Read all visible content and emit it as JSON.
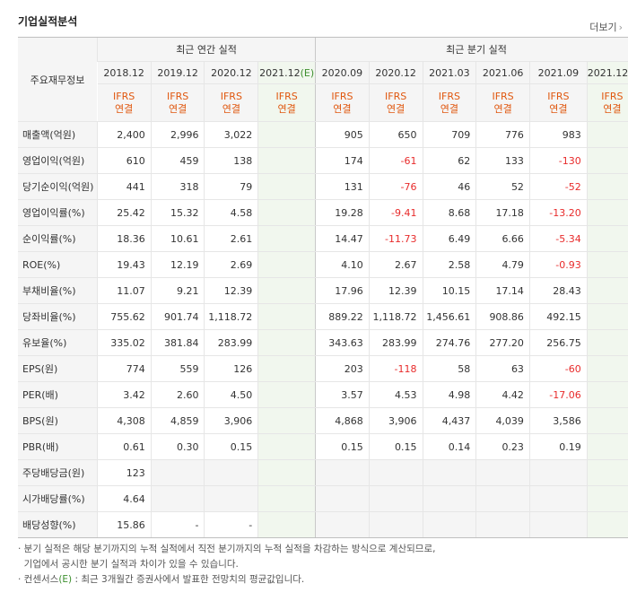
{
  "header": {
    "title": "기업실적분석",
    "more_label": "더보기"
  },
  "table": {
    "category_header": "주요재무정보",
    "annual_group": "최근 연간 실적",
    "quarter_group": "최근 분기 실적",
    "annual_periods": [
      "2018.12",
      "2019.12",
      "2020.12",
      "2021.12"
    ],
    "quarter_periods": [
      "2020.09",
      "2020.12",
      "2021.03",
      "2021.06",
      "2021.09",
      "2021.12"
    ],
    "estimate_marker": "(E)",
    "basis_top": "IFRS",
    "basis_bottom": "연결",
    "rows": [
      {
        "label": "매출액(억원)",
        "annual": [
          "2,400",
          "2,996",
          "3,022",
          ""
        ],
        "quarter": [
          "905",
          "650",
          "709",
          "776",
          "983",
          ""
        ]
      },
      {
        "label": "영업이익(억원)",
        "annual": [
          "610",
          "459",
          "138",
          ""
        ],
        "quarter": [
          "174",
          "-61",
          "62",
          "133",
          "-130",
          ""
        ]
      },
      {
        "label": "당기순이익(억원)",
        "annual": [
          "441",
          "318",
          "79",
          ""
        ],
        "quarter": [
          "131",
          "-76",
          "46",
          "52",
          "-52",
          ""
        ]
      },
      {
        "label": "영업이익률(%)",
        "annual": [
          "25.42",
          "15.32",
          "4.58",
          ""
        ],
        "quarter": [
          "19.28",
          "-9.41",
          "8.68",
          "17.18",
          "-13.20",
          ""
        ]
      },
      {
        "label": "순이익률(%)",
        "annual": [
          "18.36",
          "10.61",
          "2.61",
          ""
        ],
        "quarter": [
          "14.47",
          "-11.73",
          "6.49",
          "6.66",
          "-5.34",
          ""
        ]
      },
      {
        "label": "ROE(%)",
        "annual": [
          "19.43",
          "12.19",
          "2.69",
          ""
        ],
        "quarter": [
          "4.10",
          "2.67",
          "2.58",
          "4.79",
          "-0.93",
          ""
        ]
      },
      {
        "label": "부채비율(%)",
        "annual": [
          "11.07",
          "9.21",
          "12.39",
          ""
        ],
        "quarter": [
          "17.96",
          "12.39",
          "10.15",
          "17.14",
          "28.43",
          ""
        ]
      },
      {
        "label": "당좌비율(%)",
        "annual": [
          "755.62",
          "901.74",
          "1,118.72",
          ""
        ],
        "quarter": [
          "889.22",
          "1,118.72",
          "1,456.61",
          "908.86",
          "492.15",
          ""
        ]
      },
      {
        "label": "유보율(%)",
        "annual": [
          "335.02",
          "381.84",
          "283.99",
          ""
        ],
        "quarter": [
          "343.63",
          "283.99",
          "274.76",
          "277.20",
          "256.75",
          ""
        ]
      },
      {
        "label": "EPS(원)",
        "annual": [
          "774",
          "559",
          "126",
          ""
        ],
        "quarter": [
          "203",
          "-118",
          "58",
          "63",
          "-60",
          ""
        ]
      },
      {
        "label": "PER(배)",
        "annual": [
          "3.42",
          "2.60",
          "4.50",
          ""
        ],
        "quarter": [
          "3.57",
          "4.53",
          "4.98",
          "4.42",
          "-17.06",
          ""
        ]
      },
      {
        "label": "BPS(원)",
        "annual": [
          "4,308",
          "4,859",
          "3,906",
          ""
        ],
        "quarter": [
          "4,868",
          "3,906",
          "4,437",
          "4,039",
          "3,586",
          ""
        ]
      },
      {
        "label": "PBR(배)",
        "annual": [
          "0.61",
          "0.30",
          "0.15",
          ""
        ],
        "quarter": [
          "0.15",
          "0.15",
          "0.14",
          "0.23",
          "0.19",
          ""
        ]
      },
      {
        "label": "주당배당금(원)",
        "annual": [
          "123",
          "",
          "",
          ""
        ],
        "quarter": null
      },
      {
        "label": "시가배당률(%)",
        "annual": [
          "4.64",
          "",
          "",
          ""
        ],
        "quarter": null
      },
      {
        "label": "배당성향(%)",
        "annual": [
          "15.86",
          "-",
          "-",
          ""
        ],
        "quarter": null
      }
    ]
  },
  "notes": {
    "line1": "· 분기 실적은 해당 분기까지의 누적 실적에서 직전 분기까지의 누적 실적을 차감하는 방식으로 계산되므로,",
    "line2": "  기업에서 공시한 분기 실적과 차이가 있을 수 있습니다.",
    "line3_prefix": "· 컨센서스",
    "line3_marker": "(E)",
    "line3_suffix": " : 최근 3개월간 증권사에서 발표한 전망치의 평균값입니다."
  },
  "colors": {
    "negative": "#e82b2b",
    "basis": "#e0570e",
    "estimate": "#3d8f2e",
    "estimate_bg": "#f1f7ee"
  }
}
